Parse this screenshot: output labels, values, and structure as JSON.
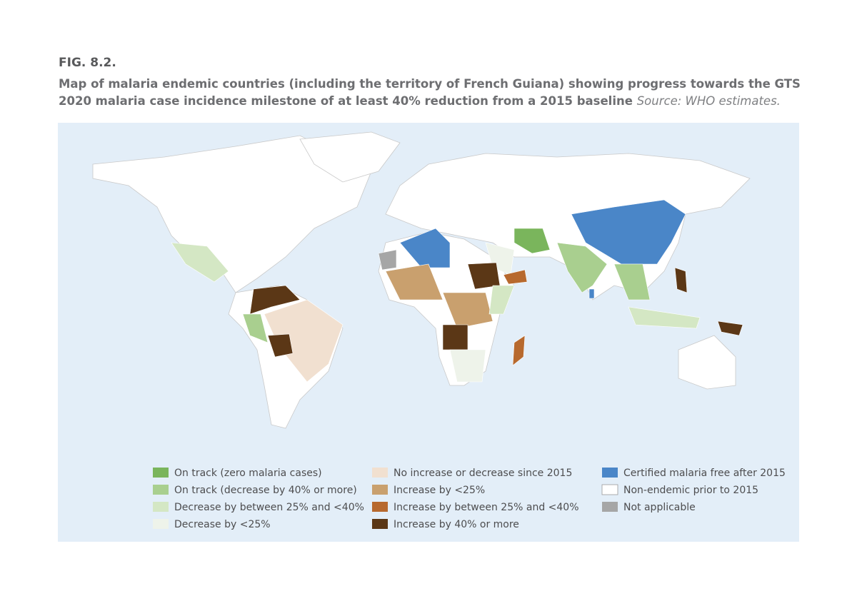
{
  "figure": {
    "label": "FIG. 8.2.",
    "title": "Map of malaria endemic countries (including the territory of French Guiana) showing progress towards the GTS 2020 malaria case incidence milestone of at least 40% reduction from a 2015 baseline",
    "source": "Source: WHO estimates."
  },
  "legend": [
    {
      "label": "On track (zero malaria cases)",
      "color": "#7ab55c"
    },
    {
      "label": "On track (decrease by 40% or more)",
      "color": "#a9cf8f"
    },
    {
      "label": "Decrease by between 25% and <40%",
      "color": "#d4e7c4"
    },
    {
      "label": "Decrease by <25%",
      "color": "#eef3ea"
    },
    {
      "label": "No increase or decrease since 2015",
      "color": "#f1e0d0"
    },
    {
      "label": "Increase by <25%",
      "color": "#c9a06e"
    },
    {
      "label": "Increase by between 25% and <40%",
      "color": "#b7692e"
    },
    {
      "label": "Increase by 40% or more",
      "color": "#5b3716"
    },
    {
      "label": "Certified malaria free after 2015",
      "color": "#4a86c8"
    },
    {
      "label": "Non-endemic prior to 2015",
      "color": "#ffffff"
    },
    {
      "label": "Not applicable",
      "color": "#a6a6a6"
    }
  ]
}
